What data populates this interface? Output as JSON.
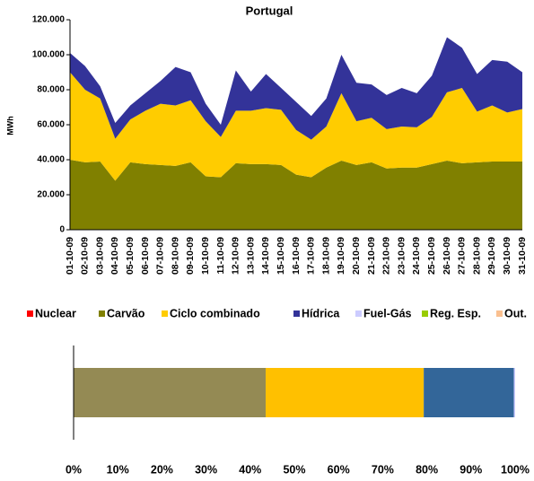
{
  "chart_data": [
    {
      "type": "area",
      "title": "Portugal",
      "y_label": "MWh",
      "categories": [
        "01-10-09",
        "02-10-09",
        "03-10-09",
        "04-10-09",
        "05-10-09",
        "06-10-09",
        "07-10-09",
        "08-10-09",
        "09-10-09",
        "10-10-09",
        "11-10-09",
        "12-10-09",
        "13-10-09",
        "14-10-09",
        "15-10-09",
        "16-10-09",
        "17-10-09",
        "18-10-09",
        "19-10-09",
        "20-10-09",
        "21-10-09",
        "22-10-09",
        "23-10-09",
        "24-10-09",
        "25-10-09",
        "26-10-09",
        "27-10-09",
        "28-10-09",
        "29-10-09",
        "30-10-09",
        "31-10-09"
      ],
      "series": [
        {
          "name": "Nuclear",
          "color": "#ff0000",
          "values": [
            0,
            0,
            0,
            0,
            0,
            0,
            0,
            0,
            0,
            0,
            0,
            0,
            0,
            0,
            0,
            0,
            0,
            0,
            0,
            0,
            0,
            0,
            0,
            0,
            0,
            0,
            0,
            0,
            0,
            0,
            0
          ]
        },
        {
          "name": "Carvão",
          "color": "#808000",
          "values": [
            40000,
            38500,
            39000,
            28000,
            38500,
            37500,
            37000,
            36500,
            38500,
            30500,
            30000,
            38000,
            37500,
            37500,
            37000,
            31500,
            30000,
            35500,
            39500,
            37000,
            38500,
            35000,
            35500,
            35500,
            37500,
            39500,
            38000,
            38500,
            39000,
            39000,
            39000
          ]
        },
        {
          "name": "Ciclo combinado",
          "color": "#ffcc00",
          "values": [
            50000,
            41500,
            36000,
            24000,
            24500,
            30500,
            35000,
            34500,
            35500,
            31500,
            23000,
            30000,
            30500,
            32000,
            31500,
            25500,
            21500,
            23500,
            38500,
            25000,
            25500,
            22500,
            23500,
            23000,
            27000,
            39000,
            43000,
            29000,
            32000,
            28000,
            30000
          ]
        },
        {
          "name": "Hídrica",
          "color": "#333399",
          "values": [
            11000,
            13500,
            7000,
            9000,
            8000,
            10000,
            13000,
            22000,
            16000,
            10000,
            7000,
            23000,
            11000,
            19500,
            12500,
            16000,
            13500,
            16000,
            22000,
            22000,
            19000,
            19500,
            22000,
            19500,
            23500,
            31500,
            23000,
            21500,
            26000,
            29000,
            21000
          ]
        },
        {
          "name": "Fuel-Gás",
          "color": "#ccccff",
          "values": [
            0,
            0,
            0,
            0,
            0,
            0,
            0,
            0,
            0,
            0,
            0,
            0,
            0,
            0,
            0,
            0,
            0,
            0,
            0,
            0,
            0,
            0,
            0,
            0,
            0,
            0,
            0,
            0,
            0,
            0,
            0
          ]
        },
        {
          "name": "Reg. Esp.",
          "color": "#99cc00",
          "values": [
            0,
            0,
            0,
            0,
            0,
            0,
            0,
            0,
            0,
            0,
            0,
            0,
            0,
            0,
            0,
            0,
            0,
            0,
            0,
            0,
            0,
            0,
            0,
            0,
            0,
            0,
            0,
            0,
            0,
            0,
            0
          ]
        },
        {
          "name": "Out.",
          "color": "#fac090",
          "values": [
            0,
            0,
            0,
            0,
            0,
            0,
            0,
            0,
            0,
            0,
            0,
            0,
            0,
            0,
            0,
            0,
            0,
            0,
            0,
            0,
            0,
            0,
            0,
            0,
            0,
            0,
            0,
            0,
            0,
            0,
            0
          ]
        }
      ],
      "ylim": [
        0,
        120000
      ],
      "yticks": [
        0,
        {
          "value": 20000,
          "label": "20.000"
        },
        {
          "value": 40000,
          "label": "40.000"
        },
        {
          "value": 60000,
          "label": "60.000"
        },
        {
          "value": 80000,
          "label": "80.000"
        },
        {
          "value": 100000,
          "label": "100.000"
        },
        {
          "value": 120000,
          "label": "120.000"
        }
      ],
      "legend": "bottom"
    },
    {
      "type": "stacked-bar-horizontal",
      "series": [
        {
          "color": "#948a54",
          "values": [
            43.5
          ]
        },
        {
          "color": "#ffc000",
          "values": [
            35.8
          ]
        },
        {
          "color": "#336699",
          "values": [
            20.4
          ]
        },
        {
          "color": "#ccccff",
          "values": [
            0.3
          ]
        }
      ],
      "xlim": [
        0,
        100
      ],
      "xticks": [
        {
          "value": 0,
          "label": "0%"
        },
        {
          "value": 10,
          "label": "10%"
        },
        {
          "value": 20,
          "label": "20%"
        },
        {
          "value": 30,
          "label": "30%"
        },
        {
          "value": 40,
          "label": "40%"
        },
        {
          "value": 50,
          "label": "50%"
        },
        {
          "value": 60,
          "label": "60%"
        },
        {
          "value": 70,
          "label": "70%"
        },
        {
          "value": 80,
          "label": "80%"
        },
        {
          "value": 90,
          "label": "90%"
        },
        {
          "value": 100,
          "label": "100%"
        }
      ]
    }
  ]
}
